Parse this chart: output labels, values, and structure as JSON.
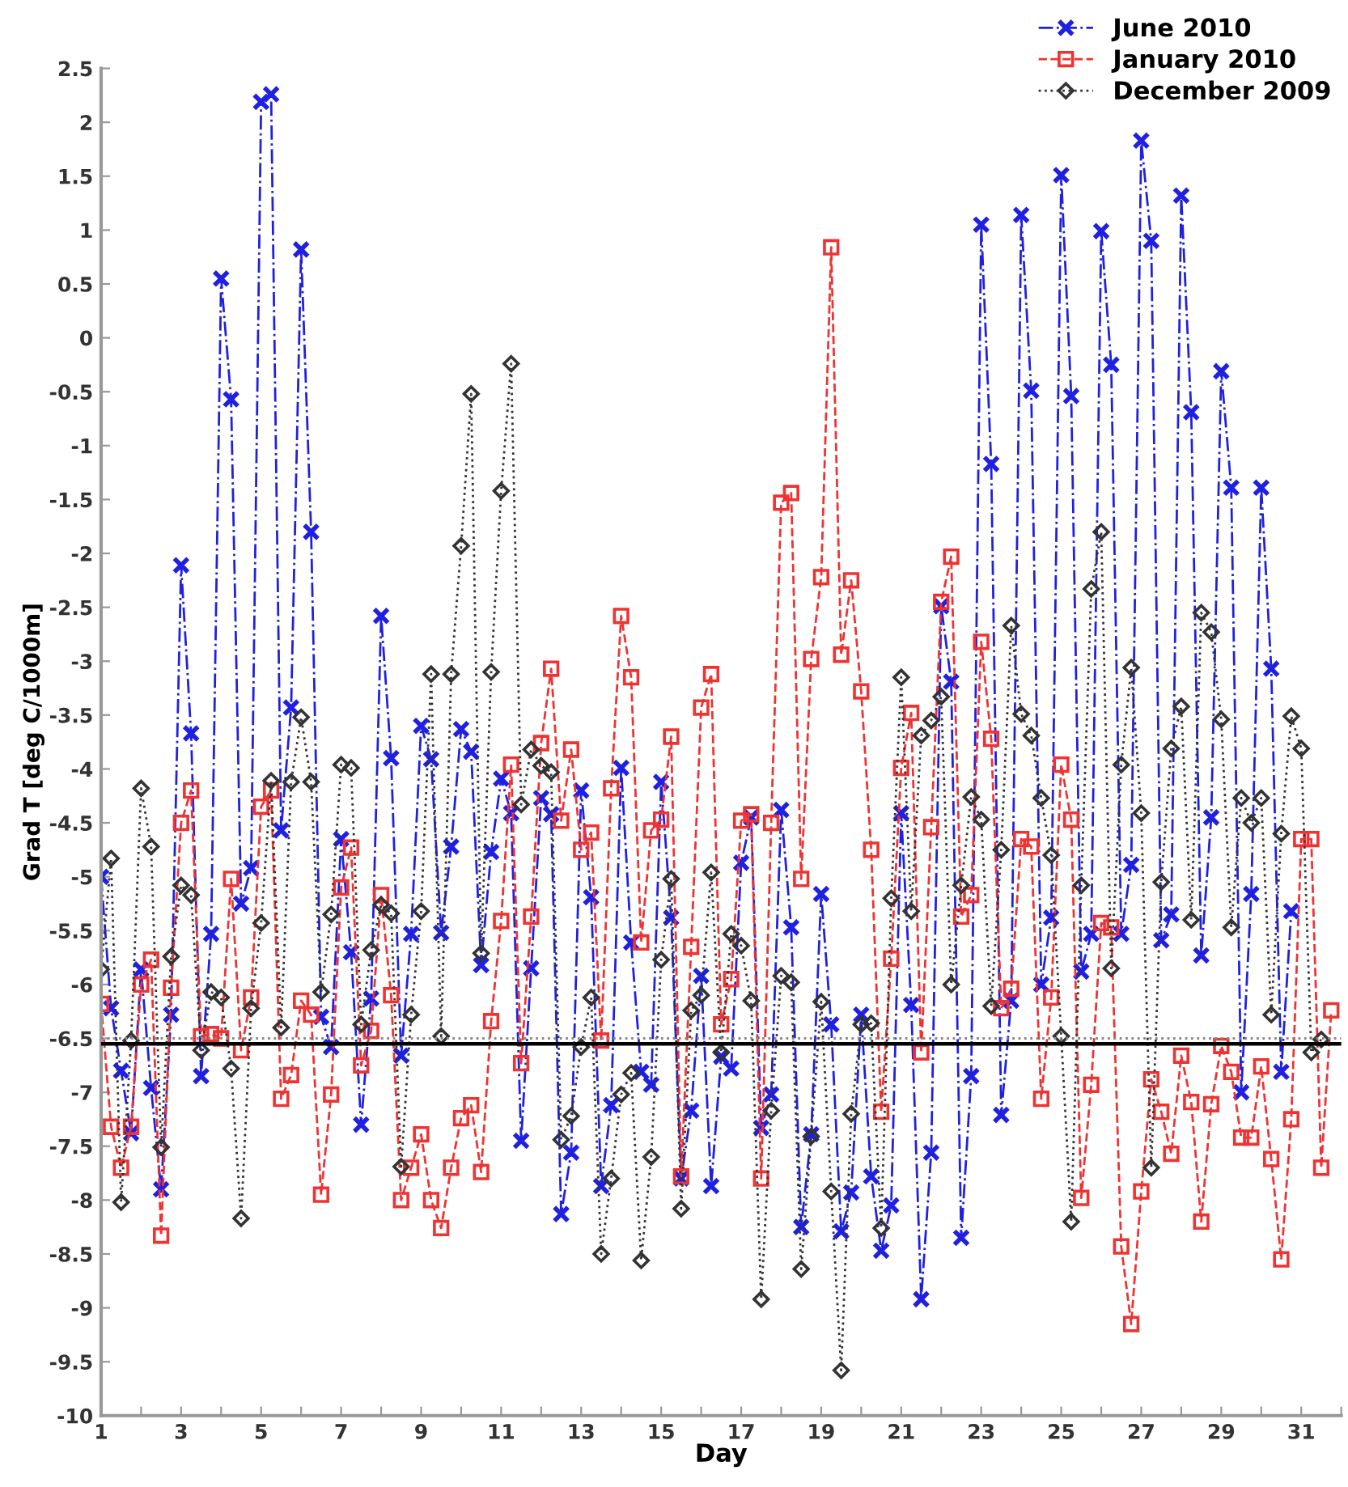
{
  "chart_data": {
    "type": "line",
    "xlabel": "Day",
    "ylabel": "Grad T [deg C/1000m]",
    "xlim": [
      1,
      32
    ],
    "ylim": [
      -10,
      2.5
    ],
    "xticks": [
      1,
      {
        "value": 2,
        "label": null
      },
      3,
      {
        "value": 4,
        "label": null
      },
      5,
      {
        "value": 6,
        "label": null
      },
      7,
      {
        "value": 8,
        "label": null
      },
      9,
      {
        "value": 10,
        "label": null
      },
      11,
      {
        "value": 12,
        "label": null
      },
      13,
      {
        "value": 14,
        "label": null
      },
      15,
      {
        "value": 16,
        "label": null
      },
      17,
      {
        "value": 18,
        "label": null
      },
      19,
      {
        "value": 20,
        "label": null
      },
      21,
      {
        "value": 22,
        "label": null
      },
      23,
      {
        "value": 24,
        "label": null
      },
      25,
      {
        "value": 26,
        "label": null
      },
      27,
      {
        "value": 28,
        "label": null
      },
      29,
      {
        "value": 30,
        "label": null
      },
      31,
      {
        "value": 32,
        "label": null
      }
    ],
    "yticks": [
      -10,
      -9.5,
      -9,
      -8.5,
      -8,
      -7.5,
      -7,
      -6.5,
      -6,
      -5.5,
      -5,
      -4.5,
      -4,
      -3.5,
      -3,
      -2.5,
      -2,
      -1.5,
      -1,
      -0.5,
      0,
      0.5,
      1,
      1.5,
      2,
      2.5
    ],
    "grid": false,
    "legend": "top right",
    "ref_lines": [
      {
        "axis": "y",
        "value": -6.5,
        "color": "#888888",
        "line_style": "dotted"
      },
      {
        "axis": "y",
        "value": -6.55,
        "color": "#000000",
        "line_style": "solid"
      }
    ],
    "series": [
      {
        "name": "June 2010",
        "color": "#2020e0",
        "marker": "cross",
        "line_style": "dashdot",
        "x": [
          1,
          1.25,
          1.5,
          1.75,
          2,
          2.25,
          2.5,
          2.75,
          3,
          3.25,
          3.5,
          3.75,
          4,
          4.25,
          4.5,
          4.75,
          5,
          5.25,
          5.5,
          5.75,
          6,
          6.25,
          6.5,
          6.75,
          7,
          7.25,
          7.5,
          7.75,
          8,
          8.25,
          8.5,
          8.75,
          9,
          9.25,
          9.5,
          9.75,
          10,
          10.25,
          10.5,
          10.75,
          11,
          11.25,
          11.5,
          11.75,
          12,
          12.25,
          12.5,
          12.75,
          13,
          13.25,
          13.5,
          13.75,
          14,
          14.25,
          14.5,
          14.75,
          15,
          15.25,
          15.5,
          15.75,
          16,
          16.25,
          16.5,
          16.75,
          17,
          17.25,
          17.5,
          17.75,
          18,
          18.25,
          18.5,
          18.75,
          19,
          19.25,
          19.5,
          19.75,
          20,
          20.25,
          20.5,
          20.75,
          21,
          21.25,
          21.5,
          21.75,
          22,
          22.25,
          22.5,
          22.75,
          23,
          23.25,
          23.5,
          23.75,
          24,
          24.25,
          24.5,
          24.75,
          25,
          25.25,
          25.5,
          25.75,
          26,
          26.25,
          26.5,
          26.75,
          27,
          27.25,
          27.5,
          27.75,
          28,
          28.25,
          28.5,
          28.75,
          29,
          29.25,
          29.5,
          29.75,
          30,
          30.25,
          30.5,
          30.75
        ],
        "values": [
          -5.0,
          -6.22,
          -6.8,
          -7.38,
          -5.86,
          -6.96,
          -7.9,
          -6.28,
          -2.11,
          -3.67,
          -6.85,
          -5.53,
          0.55,
          -0.57,
          -5.25,
          -4.92,
          2.19,
          2.26,
          -4.57,
          -3.43,
          0.82,
          -1.8,
          -6.3,
          -6.58,
          -4.65,
          -5.7,
          -7.3,
          -6.13,
          -2.58,
          -3.9,
          -6.66,
          -5.53,
          -3.6,
          -3.91,
          -5.52,
          -4.72,
          -3.63,
          -3.84,
          -5.82,
          -4.77,
          -4.09,
          -4.41,
          -7.45,
          -5.85,
          -4.27,
          -4.42,
          -8.13,
          -7.56,
          -4.2,
          -5.19,
          -7.87,
          -7.12,
          -3.99,
          -5.61,
          -6.81,
          -6.93,
          -4.12,
          -5.38,
          -7.8,
          -7.17,
          -5.92,
          -7.87,
          -6.67,
          -6.78,
          -4.87,
          -4.45,
          -7.33,
          -7.02,
          -4.38,
          -5.47,
          -8.25,
          -7.39,
          -5.16,
          -6.37,
          -8.29,
          -7.93,
          -6.28,
          -7.78,
          -8.47,
          -8.05,
          -4.41,
          -6.19,
          -8.92,
          -7.56,
          -2.49,
          -3.19,
          -8.35,
          -6.85,
          1.05,
          -1.17,
          -7.21,
          -6.15,
          1.14,
          -0.49,
          -6.0,
          -5.38,
          1.51,
          -0.54,
          -5.88,
          -5.53,
          0.99,
          -0.25,
          -5.53,
          -4.89,
          1.83,
          0.9,
          -5.59,
          -5.35,
          1.32,
          -0.69,
          -5.73,
          -4.45,
          -0.31,
          -1.39,
          -7.0,
          -5.16,
          -1.39,
          -3.07,
          -6.81,
          -5.32
        ]
      },
      {
        "name": "January 2010",
        "color": "#ee3333",
        "marker": "square",
        "line_style": "dashed",
        "x": [
          1,
          1.25,
          1.5,
          1.75,
          2,
          2.25,
          2.5,
          2.75,
          3,
          3.25,
          3.5,
          3.75,
          4,
          4.25,
          4.5,
          4.75,
          5,
          5.25,
          5.5,
          5.75,
          6,
          6.25,
          6.5,
          6.75,
          7,
          7.25,
          7.5,
          7.75,
          8,
          8.25,
          8.5,
          8.75,
          9,
          9.25,
          9.5,
          9.75,
          10,
          10.25,
          10.5,
          10.75,
          11,
          11.25,
          11.5,
          11.75,
          12,
          12.25,
          12.5,
          12.75,
          13,
          13.25,
          13.5,
          13.75,
          14,
          14.25,
          14.5,
          14.75,
          15,
          15.25,
          15.5,
          15.75,
          16,
          16.25,
          16.5,
          16.75,
          17,
          17.25,
          17.5,
          17.75,
          18,
          18.25,
          18.5,
          18.75,
          19,
          19.25,
          19.5,
          19.75,
          20,
          20.25,
          20.5,
          20.75,
          21,
          21.25,
          21.5,
          21.75,
          22,
          22.25,
          22.5,
          22.75,
          23,
          23.25,
          23.5,
          23.75,
          24,
          24.25,
          24.5,
          24.75,
          25,
          25.25,
          25.5,
          25.75,
          26,
          26.25,
          26.5,
          26.75,
          27,
          27.25,
          27.5,
          27.75,
          28,
          28.25,
          28.5,
          28.75,
          29,
          29.25,
          29.5,
          29.75,
          30,
          30.25,
          30.5,
          30.75,
          31,
          31.25,
          31.5,
          31.75
        ],
        "values": [
          -6.18,
          -7.32,
          -7.7,
          -7.32,
          -6.0,
          -5.77,
          -8.33,
          -6.03,
          -4.5,
          -4.2,
          -6.48,
          -6.46,
          -6.5,
          -5.02,
          -6.61,
          -6.12,
          -4.35,
          -4.2,
          -7.06,
          -6.84,
          -6.15,
          -6.28,
          -7.95,
          -7.02,
          -5.1,
          -4.73,
          -6.75,
          -6.43,
          -5.17,
          -6.1,
          -8.0,
          -7.7,
          -7.39,
          -8.0,
          -8.26,
          -7.7,
          -7.24,
          -7.12,
          -7.74,
          -6.34,
          -5.41,
          -3.96,
          -6.73,
          -5.37,
          -3.76,
          -3.07,
          -4.48,
          -3.82,
          -4.75,
          -4.59,
          -6.52,
          -4.18,
          -2.58,
          -3.15,
          -5.61,
          -4.57,
          -4.47,
          -3.7,
          -7.78,
          -5.65,
          -3.43,
          -3.12,
          -6.37,
          -5.95,
          -4.48,
          -4.42,
          -7.8,
          -4.5,
          -1.53,
          -1.44,
          -5.02,
          -2.98,
          -2.22,
          0.84,
          -2.94,
          -2.25,
          -3.28,
          -4.75,
          -7.18,
          -5.76,
          -3.99,
          -3.48,
          -6.63,
          -4.54,
          -2.45,
          -2.03,
          -5.37,
          -5.17,
          -2.82,
          -3.72,
          -6.22,
          -6.04,
          -4.65,
          -4.72,
          -7.06,
          -6.12,
          -3.96,
          -4.47,
          -7.98,
          -6.93,
          -5.43,
          -5.47,
          -8.43,
          -9.15,
          -7.92,
          -6.88,
          -7.18,
          -7.57,
          -6.66,
          -7.09,
          -8.2,
          -7.11,
          -6.57,
          -6.81,
          -7.42,
          -7.42,
          -6.76,
          -7.62,
          -8.55,
          -7.25,
          -4.65,
          -4.65,
          -7.7,
          -6.24
        ]
      },
      {
        "name": "December 2009",
        "color": "#333333",
        "marker": "diamond",
        "line_style": "dotted",
        "x": [
          1,
          1.25,
          1.5,
          1.75,
          2,
          2.25,
          2.5,
          2.75,
          3,
          3.25,
          3.5,
          3.75,
          4,
          4.25,
          4.5,
          4.75,
          5,
          5.25,
          5.5,
          5.75,
          6,
          6.25,
          6.5,
          6.75,
          7,
          7.25,
          7.5,
          7.75,
          8,
          8.25,
          8.5,
          8.75,
          9,
          9.25,
          9.5,
          9.75,
          10,
          10.25,
          10.5,
          10.75,
          11,
          11.25,
          11.5,
          11.75,
          12,
          12.25,
          12.5,
          12.75,
          13,
          13.25,
          13.5,
          13.75,
          14,
          14.25,
          14.5,
          14.75,
          15,
          15.25,
          15.5,
          15.75,
          16,
          16.25,
          16.5,
          16.75,
          17,
          17.25,
          17.5,
          17.75,
          18,
          18.25,
          18.5,
          18.75,
          19,
          19.25,
          19.5,
          19.75,
          20,
          20.25,
          20.5,
          20.75,
          21,
          21.25,
          21.5,
          21.75,
          22,
          22.25,
          22.5,
          22.75,
          23,
          23.25,
          23.5,
          23.75,
          24,
          24.25,
          24.5,
          24.75,
          25,
          25.25,
          25.5,
          25.75,
          26,
          26.25,
          26.5,
          26.75,
          27,
          27.25,
          27.5,
          27.75,
          28,
          28.25,
          28.5,
          28.75,
          29,
          29.25,
          29.5,
          29.75,
          30,
          30.25,
          30.5,
          30.75,
          31,
          31.25,
          31.5
        ],
        "values": [
          -5.86,
          -4.83,
          -8.02,
          -6.52,
          -4.18,
          -4.72,
          -7.51,
          -5.74,
          -5.08,
          -5.17,
          -6.61,
          -6.07,
          -6.12,
          -6.78,
          -8.17,
          -6.22,
          -5.43,
          -4.11,
          -6.4,
          -4.12,
          -3.52,
          -4.12,
          -6.07,
          -5.35,
          -3.96,
          -3.99,
          -6.37,
          -5.68,
          -5.26,
          -5.34,
          -7.69,
          -6.28,
          -5.32,
          -3.12,
          -6.48,
          -3.12,
          -1.93,
          -0.52,
          -5.71,
          -3.1,
          -1.42,
          -0.24,
          -4.33,
          -3.82,
          -3.97,
          -4.03,
          -7.44,
          -7.22,
          -6.58,
          -6.12,
          -8.5,
          -7.8,
          -7.02,
          -6.82,
          -8.56,
          -7.6,
          -5.77,
          -5.02,
          -8.08,
          -6.24,
          -6.1,
          -4.96,
          -6.63,
          -5.53,
          -5.64,
          -6.15,
          -8.92,
          -7.17,
          -5.92,
          -5.98,
          -8.64,
          -7.41,
          -6.16,
          -7.92,
          -9.58,
          -7.2,
          -6.37,
          -6.36,
          -8.26,
          -5.2,
          -3.15,
          -5.32,
          -3.69,
          -3.55,
          -3.33,
          -6.0,
          -5.08,
          -4.26,
          -4.47,
          -6.2,
          -4.75,
          -2.67,
          -3.49,
          -3.69,
          -4.27,
          -4.8,
          -6.48,
          -8.2,
          -5.08,
          -2.33,
          -1.8,
          -5.85,
          -3.96,
          -3.06,
          -4.41,
          -7.7,
          -5.05,
          -3.81,
          -3.42,
          -5.4,
          -2.55,
          -2.73,
          -3.54,
          -5.47,
          -4.27,
          -4.5,
          -4.27,
          -6.28,
          -4.6,
          -3.51,
          -3.81,
          -6.63,
          -6.51
        ]
      }
    ]
  }
}
